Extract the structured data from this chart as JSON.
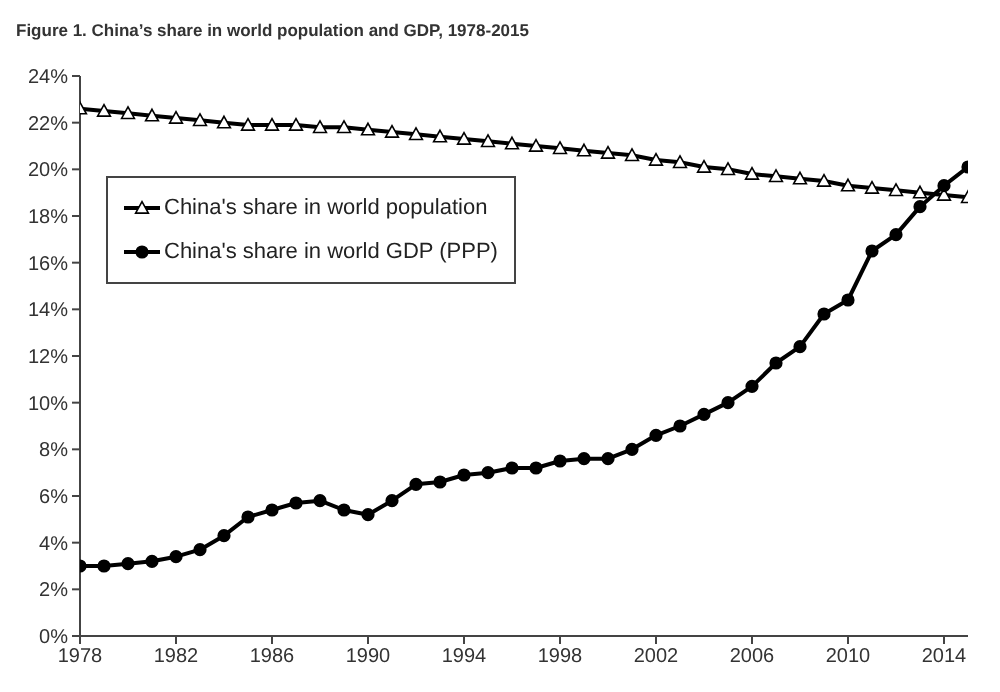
{
  "chart_data": {
    "type": "line",
    "title": "Figure 1. China’s share in world population and GDP, 1978-2015",
    "x": [
      1978,
      1979,
      1980,
      1981,
      1982,
      1983,
      1984,
      1985,
      1986,
      1987,
      1988,
      1989,
      1990,
      1991,
      1992,
      1993,
      1994,
      1995,
      1996,
      1997,
      1998,
      1999,
      2000,
      2001,
      2002,
      2003,
      2004,
      2005,
      2006,
      2007,
      2008,
      2009,
      2010,
      2011,
      2012,
      2013,
      2014,
      2015
    ],
    "series": [
      {
        "name": "China's share in world population",
        "color": "#000000",
        "marker": "triangle",
        "values": [
          22.6,
          22.5,
          22.4,
          22.3,
          22.2,
          22.1,
          22.0,
          21.9,
          21.9,
          21.9,
          21.8,
          21.8,
          21.7,
          21.6,
          21.5,
          21.4,
          21.3,
          21.2,
          21.1,
          21.0,
          20.9,
          20.8,
          20.7,
          20.6,
          20.4,
          20.3,
          20.1,
          20.0,
          19.8,
          19.7,
          19.6,
          19.5,
          19.3,
          19.2,
          19.1,
          19.0,
          18.9,
          18.8
        ]
      },
      {
        "name": "China's share in world GDP (PPP)",
        "color": "#000000",
        "marker": "circle",
        "values": [
          3.0,
          3.0,
          3.1,
          3.2,
          3.4,
          3.7,
          4.3,
          5.1,
          5.4,
          5.7,
          5.8,
          5.4,
          5.2,
          5.8,
          6.5,
          6.6,
          6.9,
          7.0,
          7.2,
          7.2,
          7.5,
          7.6,
          7.6,
          8.0,
          8.6,
          9.0,
          9.5,
          10.0,
          10.7,
          11.7,
          12.4,
          13.8,
          14.4,
          16.5,
          17.2,
          18.4,
          19.3,
          20.1
        ]
      }
    ],
    "xlim": [
      1978,
      2015
    ],
    "xticks": [
      1978,
      1982,
      1986,
      1990,
      1994,
      1998,
      2002,
      2006,
      2010,
      2014
    ],
    "ylim": [
      0,
      24
    ],
    "yticks": [
      {
        "value": 0,
        "label": "0%"
      },
      {
        "value": 2,
        "label": "2%"
      },
      {
        "value": 4,
        "label": "4%"
      },
      {
        "value": 6,
        "label": "6%"
      },
      {
        "value": 8,
        "label": "8%"
      },
      {
        "value": 10,
        "label": "10%"
      },
      {
        "value": 12,
        "label": "12%"
      },
      {
        "value": 14,
        "label": "14%"
      },
      {
        "value": 16,
        "label": "16%"
      },
      {
        "value": 18,
        "label": "18%"
      },
      {
        "value": 20,
        "label": "20%"
      },
      {
        "value": 22,
        "label": "22%"
      },
      {
        "value": 24,
        "label": "24%"
      }
    ],
    "grid": false,
    "legend": "top left",
    "line_style": "solid"
  }
}
